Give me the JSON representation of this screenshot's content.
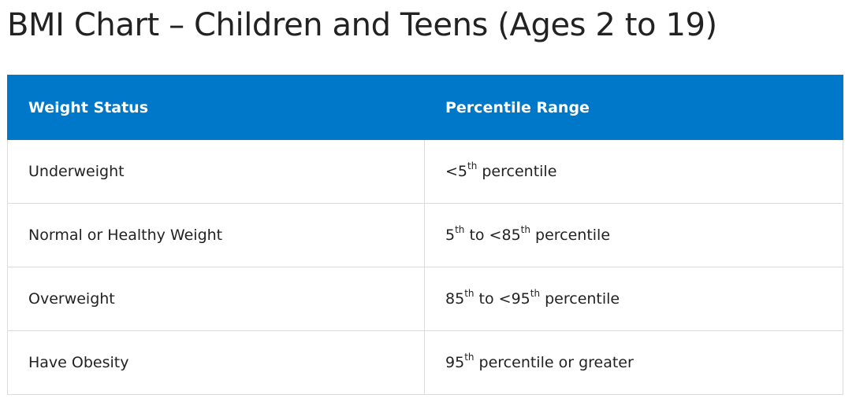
{
  "title": "BMI Chart – Children and Teens (Ages 2 to 19)",
  "table": {
    "headers": {
      "status": "Weight Status",
      "range": "Percentile Range"
    },
    "rows": [
      {
        "status": "Underweight",
        "range": [
          {
            "t": "<5"
          },
          {
            "sup": "th"
          },
          {
            "t": " percentile"
          }
        ]
      },
      {
        "status": "Normal or Healthy Weight",
        "range": [
          {
            "t": "5"
          },
          {
            "sup": "th"
          },
          {
            "t": " to <85"
          },
          {
            "sup": "th"
          },
          {
            "t": " percentile"
          }
        ]
      },
      {
        "status": "Overweight",
        "range": [
          {
            "t": "85"
          },
          {
            "sup": "th"
          },
          {
            "t": " to <95"
          },
          {
            "sup": "th"
          },
          {
            "t": " percentile"
          }
        ]
      },
      {
        "status": "Have Obesity",
        "range": [
          {
            "t": "95"
          },
          {
            "sup": "th"
          },
          {
            "t": " percentile or greater"
          }
        ]
      }
    ]
  },
  "colors": {
    "header_bg": "#0078c9",
    "header_text": "#ffffff",
    "border": "#dcdcdc",
    "text": "#222222"
  }
}
